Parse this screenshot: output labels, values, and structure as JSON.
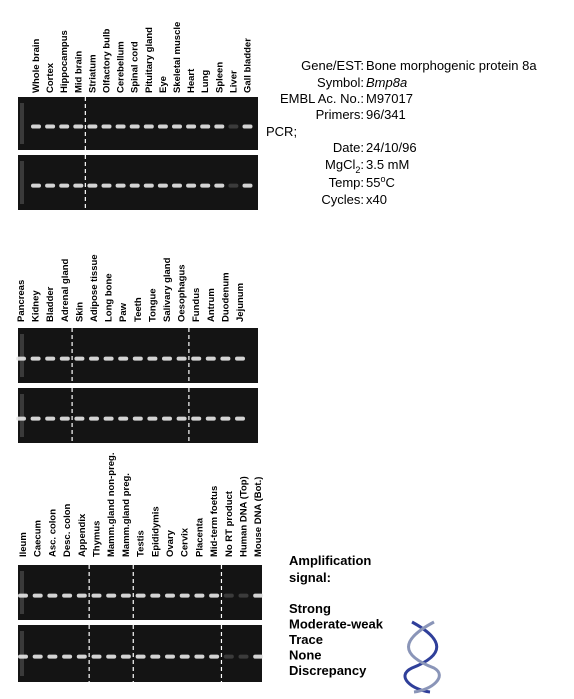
{
  "panels": [
    {
      "lanes": [
        {
          "label": "Whole brain",
          "color": "#2aa6dc"
        },
        {
          "label": "Cortex",
          "color": "#2aa6dc"
        },
        {
          "label": "Hippocampus",
          "color": "#c8102e"
        },
        {
          "label": "Mid brain",
          "color": "#2aa6dc"
        },
        {
          "label": "Striatum",
          "color": "#c8102e"
        },
        {
          "label": "Olfactory bulb",
          "color": "#2aa6dc"
        },
        {
          "label": "Cerebellum",
          "color": "#2aa6dc"
        },
        {
          "label": "Spinal cord",
          "color": "#2aa6dc"
        },
        {
          "label": "Pituitary gland",
          "color": "#2aa6dc"
        },
        {
          "label": "Eye",
          "color": "#2aa6dc"
        },
        {
          "label": "Skeletal muscle",
          "color": "#2aa6dc"
        },
        {
          "label": "Heart",
          "color": "#5cbf2a"
        },
        {
          "label": "Lung",
          "color": "#2aa6dc"
        },
        {
          "label": "Spleen",
          "color": "#2aa6dc"
        },
        {
          "label": "Liver",
          "color": "#f2cf1d"
        },
        {
          "label": "Gall bladder",
          "color": "#1a1a7a"
        }
      ]
    },
    {
      "lanes": [
        {
          "label": "Pancreas",
          "color": "#2aa6dc"
        },
        {
          "label": "Kidney",
          "color": "#2aa6dc"
        },
        {
          "label": "Bladder",
          "color": "#2aa6dc"
        },
        {
          "label": "Adrenal gland",
          "color": "#5cbf2a"
        },
        {
          "label": "Skin",
          "color": "#1a1a7a"
        },
        {
          "label": "Adipose tissue",
          "color": "#1a1a7a"
        },
        {
          "label": "Long bone",
          "color": "#1a1a7a"
        },
        {
          "label": "Paw",
          "color": "#1a1a7a"
        },
        {
          "label": "Teeth",
          "color": "#1a1a7a"
        },
        {
          "label": "Tongue",
          "color": "#2aa6dc"
        },
        {
          "label": "Salivary gland",
          "color": "#2aa6dc"
        },
        {
          "label": "Oesophagus",
          "color": "#2aa6dc"
        },
        {
          "label": "Fundus",
          "color": "#2aa6dc"
        },
        {
          "label": "Antrum",
          "color": "#1a1a7a"
        },
        {
          "label": "Duodenum",
          "color": "#1a1a7a"
        },
        {
          "label": "Jejunum",
          "color": "#1a1a7a"
        }
      ]
    },
    {
      "lanes": [
        {
          "label": "Ileum",
          "color": "#1a1a7a"
        },
        {
          "label": "Caecum",
          "color": "#1a1a7a"
        },
        {
          "label": "Asc. colon",
          "color": "#1a1a7a"
        },
        {
          "label": "Desc. colon",
          "color": "#c8102e"
        },
        {
          "label": "Appendix",
          "color": "#1a1a7a"
        },
        {
          "label": "Thymus",
          "color": "#5cbf2a"
        },
        {
          "label": "Mamm.gland non-preg.",
          "color": "#1a1a7a"
        },
        {
          "label": "Mamm.gland preg.",
          "color": "#1a1a7a"
        },
        {
          "label": "Testis",
          "color": "#1a1a7a"
        },
        {
          "label": "Epididymis",
          "color": "#1a1a7a"
        },
        {
          "label": "Ovary",
          "color": "#2aa6dc"
        },
        {
          "label": "Cervix",
          "color": "#1a1a7a"
        },
        {
          "label": "Placenta",
          "color": "#1a1a7a"
        },
        {
          "label": "Mid-term foetus",
          "color": "#1a1a7a"
        },
        {
          "label": "No RT product",
          "color": "#f2cf1d"
        },
        {
          "label": "Human DNA (Top)",
          "color": "#f2cf1d"
        },
        {
          "label": "Mouse DNA (Bot.)",
          "color": "#1a1a7a"
        }
      ]
    }
  ],
  "info": {
    "gene": {
      "label": "Gene/EST:",
      "value": "Bone morphogenic protein 8a"
    },
    "symbol": {
      "label": "Symbol:",
      "value": "Bmp8a"
    },
    "embl": {
      "label": "EMBL Ac. No.:",
      "value": "M97017"
    },
    "primers": {
      "label": "Primers:",
      "value": "96/341"
    },
    "pcr": "PCR;",
    "date": {
      "label": "Date:",
      "value": "24/10/96"
    },
    "mgcl2": {
      "label": "MgCl",
      "label_sub": "2",
      "label_end": ":",
      "value": "3.5 mM"
    },
    "temp": {
      "label": "Temp:",
      "value": "55",
      "value_sup": "o",
      "value_end": "C"
    },
    "cycles": {
      "label": "Cycles:",
      "value": "x40"
    }
  },
  "legend": {
    "title_1": "Amplification",
    "title_2": "signal:",
    "items": [
      {
        "name": "Strong",
        "color": "#1a1a7a"
      },
      {
        "name": "Moderate-weak",
        "color": "#2aa6dc"
      },
      {
        "name": "Trace",
        "color": "#5cbf2a"
      },
      {
        "name": "None",
        "color": "#f2e21d"
      },
      {
        "name": "Discrepancy",
        "color": "#c8102e"
      }
    ]
  }
}
